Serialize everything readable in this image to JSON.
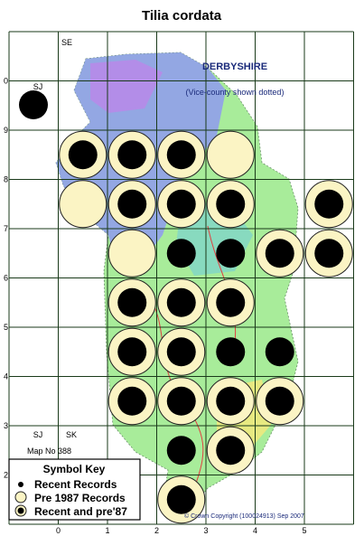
{
  "title": "Tilia cordata",
  "region": "DERBYSHIRE",
  "note": "(Vice-county shown dotted)",
  "grid_labels": {
    "top_right": "SE",
    "top_left": "SJ",
    "bottom_left": "SJ",
    "bottom_right": "SK"
  },
  "map_number": "Map No 388",
  "x_axis_labels": [
    "0",
    "1",
    "2",
    "3",
    "4",
    "5"
  ],
  "y_axis_labels": [
    "0",
    "9",
    "8",
    "7",
    "6",
    "5",
    "4",
    "3",
    "2"
  ],
  "key": {
    "title": "Symbol Key",
    "items": [
      "Recent Records",
      "Pre 1987 Records",
      "Recent and pre'87"
    ]
  },
  "copyright": "© Crown Copyright (100024913) Sep 2007"
}
